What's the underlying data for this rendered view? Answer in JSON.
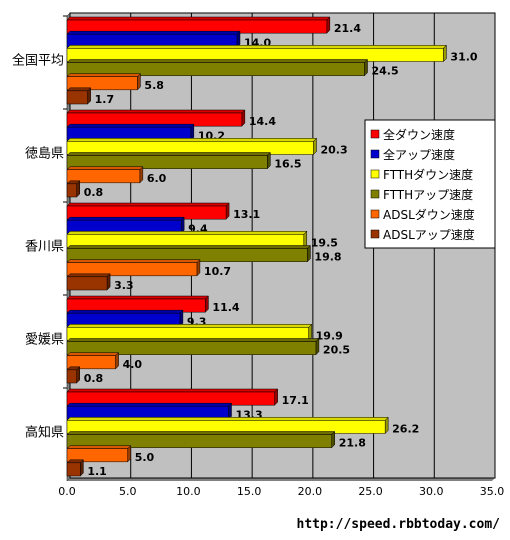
{
  "chart_data": {
    "type": "bar",
    "orientation": "horizontal",
    "categories": [
      "全国平均",
      "徳島県",
      "香川県",
      "愛媛県",
      "高知県"
    ],
    "series": [
      {
        "name": "全ダウン速度",
        "color": "#ff0000",
        "values": [
          21.4,
          14.4,
          13.1,
          11.4,
          17.1
        ]
      },
      {
        "name": "全アップ速度",
        "color": "#0000cc",
        "values": [
          14.0,
          10.2,
          9.4,
          9.3,
          13.3
        ]
      },
      {
        "name": "FTTHダウン速度",
        "color": "#ffff00",
        "values": [
          31.0,
          20.3,
          19.5,
          19.9,
          26.2
        ]
      },
      {
        "name": "FTTHアップ速度",
        "color": "#808000",
        "values": [
          24.5,
          16.5,
          19.8,
          20.5,
          21.8
        ]
      },
      {
        "name": "ADSLダウン速度",
        "color": "#ff6600",
        "values": [
          5.8,
          6.0,
          10.7,
          4.0,
          5.0
        ]
      },
      {
        "name": "ADSLアップ速度",
        "color": "#993300",
        "values": [
          1.7,
          0.8,
          3.3,
          0.8,
          1.1
        ]
      }
    ],
    "xlim": [
      0,
      35
    ],
    "xticks": [
      "0.0",
      "5.0",
      "10.0",
      "15.0",
      "20.0",
      "25.0",
      "30.0",
      "35.0"
    ],
    "grid": true,
    "legend_position": "right"
  },
  "source_text": "http://speed.rbbtoday.com/"
}
